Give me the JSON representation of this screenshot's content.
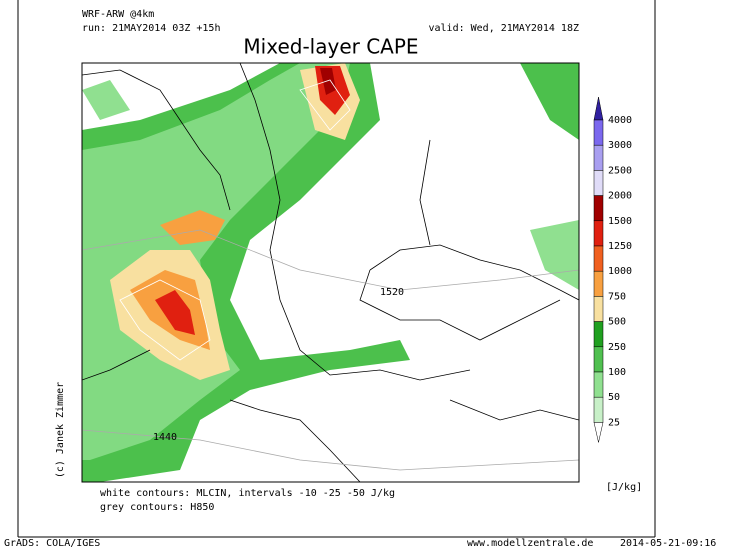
{
  "header": {
    "model": "WRF-ARW @4km",
    "run": "run: 21MAY2014 03Z +15h",
    "valid": "valid: Wed, 21MAY2014 18Z"
  },
  "title": "Mixed-layer CAPE",
  "colorbar": {
    "labels": [
      "4000",
      "3000",
      "2500",
      "2000",
      "1500",
      "1250",
      "1000",
      "750",
      "500",
      "250",
      "100",
      "50",
      "25"
    ],
    "unit": "[J/kg]"
  },
  "contour_labels": [
    "1520",
    "1440"
  ],
  "author": "(c) Janek Zimmer",
  "notes": [
    "white contours: MLCIN, intervals -10 -25 -50 J/kg",
    "grey contours: H850"
  ],
  "footer": {
    "software": "GrADS: COLA/IGES",
    "website": "www.modellzentrale.de",
    "timestamp": "2014-05-21-09:16"
  }
}
